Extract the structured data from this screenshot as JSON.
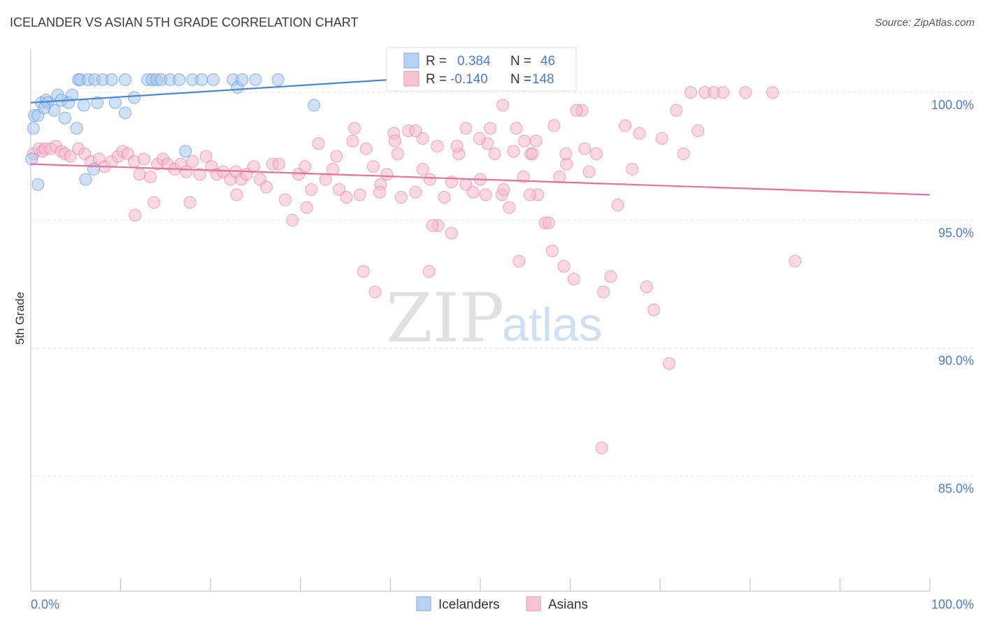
{
  "title": "ICELANDER VS ASIAN 5TH GRADE CORRELATION CHART",
  "source": "Source: ZipAtlas.com",
  "watermark": {
    "zip": "ZIP",
    "atlas": "atlas"
  },
  "colors": {
    "icelanders": "#4a86d8",
    "icelanders_fill": "#a9c8f0",
    "asians": "#e8709a",
    "asians_fill": "#f5b8cc",
    "axis_label": "#4a7bd0"
  },
  "legend": {
    "items": [
      {
        "r_label": "R =",
        "r_value": "0.384",
        "n_label": "N =",
        "n_value": "46"
      },
      {
        "r_label": "R =",
        "r_value": "-0.140",
        "n_label": "N =",
        "n_value": "148"
      }
    ]
  },
  "chart_data": {
    "type": "scatter",
    "title": "ICELANDER VS ASIAN 5TH GRADE CORRELATION CHART",
    "xlabel": "",
    "ylabel": "5th Grade",
    "xlim": [
      0,
      100
    ],
    "ylim": [
      80.5,
      101.7
    ],
    "x_tick_labels": [
      "0.0%",
      "100.0%"
    ],
    "y_ticks": [
      {
        "value": 100,
        "label": "100.0%"
      },
      {
        "value": 95,
        "label": "95.0%"
      },
      {
        "value": 90,
        "label": "90.0%"
      },
      {
        "value": 85,
        "label": "85.0%"
      }
    ],
    "grid": true,
    "series": [
      {
        "name": "Icelanders",
        "trend": {
          "x": [
            0,
            40
          ],
          "y": [
            99.6,
            100.5
          ]
        },
        "points": [
          [
            0.1,
            97.4
          ],
          [
            0.4,
            99.1
          ],
          [
            0.8,
            99.1
          ],
          [
            1.2,
            99.6
          ],
          [
            1.7,
            99.7
          ],
          [
            1.9,
            99.6
          ],
          [
            2.6,
            99.3
          ],
          [
            3.0,
            99.9
          ],
          [
            3.4,
            99.7
          ],
          [
            3.8,
            99.0
          ],
          [
            4.2,
            99.6
          ],
          [
            4.6,
            99.9
          ],
          [
            5.1,
            98.6
          ],
          [
            5.3,
            100.5
          ],
          [
            5.5,
            100.5
          ],
          [
            5.9,
            99.5
          ],
          [
            6.4,
            100.5
          ],
          [
            7.1,
            100.5
          ],
          [
            7.0,
            97.0
          ],
          [
            7.4,
            99.6
          ],
          [
            8.0,
            100.5
          ],
          [
            9.0,
            100.5
          ],
          [
            9.4,
            99.6
          ],
          [
            10.5,
            99.2
          ],
          [
            10.5,
            100.5
          ],
          [
            11.5,
            99.8
          ],
          [
            13.0,
            100.5
          ],
          [
            13.5,
            100.5
          ],
          [
            14.0,
            100.5
          ],
          [
            14.5,
            100.5
          ],
          [
            15.5,
            100.5
          ],
          [
            16.5,
            100.5
          ],
          [
            17.2,
            97.7
          ],
          [
            18.0,
            100.5
          ],
          [
            19.0,
            100.5
          ],
          [
            20.3,
            100.5
          ],
          [
            22.5,
            100.5
          ],
          [
            23.0,
            100.2
          ],
          [
            23.5,
            100.5
          ],
          [
            25.0,
            100.5
          ],
          [
            27.5,
            100.5
          ],
          [
            31.5,
            99.5
          ],
          [
            6.1,
            96.6
          ],
          [
            0.8,
            96.4
          ],
          [
            0.3,
            98.6
          ],
          [
            1.5,
            99.4
          ]
        ]
      },
      {
        "name": "Asians",
        "trend": {
          "x": [
            0,
            100
          ],
          "y": [
            97.2,
            96.0
          ]
        },
        "points": [
          [
            0.3,
            97.6
          ],
          [
            0.9,
            97.8
          ],
          [
            1.3,
            97.7
          ],
          [
            1.6,
            97.8
          ],
          [
            2.2,
            97.8
          ],
          [
            2.8,
            97.9
          ],
          [
            3.4,
            97.7
          ],
          [
            3.8,
            97.6
          ],
          [
            4.4,
            97.5
          ],
          [
            5.3,
            97.8
          ],
          [
            6.0,
            97.6
          ],
          [
            6.7,
            97.3
          ],
          [
            7.6,
            97.4
          ],
          [
            8.2,
            97.1
          ],
          [
            9.0,
            97.3
          ],
          [
            9.7,
            97.5
          ],
          [
            10.2,
            97.7
          ],
          [
            10.8,
            97.6
          ],
          [
            11.5,
            97.3
          ],
          [
            12.1,
            96.8
          ],
          [
            12.6,
            97.4
          ],
          [
            13.3,
            96.7
          ],
          [
            14.1,
            97.2
          ],
          [
            14.7,
            97.4
          ],
          [
            15.2,
            97.2
          ],
          [
            16.0,
            97.0
          ],
          [
            16.7,
            97.2
          ],
          [
            17.3,
            96.9
          ],
          [
            18.0,
            97.3
          ],
          [
            18.8,
            96.8
          ],
          [
            19.5,
            97.5
          ],
          [
            20.1,
            97.1
          ],
          [
            20.7,
            96.8
          ],
          [
            21.4,
            96.9
          ],
          [
            22.2,
            96.6
          ],
          [
            22.8,
            96.9
          ],
          [
            23.4,
            96.6
          ],
          [
            24.0,
            96.8
          ],
          [
            24.8,
            97.1
          ],
          [
            25.5,
            96.6
          ],
          [
            26.2,
            96.3
          ],
          [
            26.9,
            97.2
          ],
          [
            27.6,
            97.2
          ],
          [
            28.3,
            95.8
          ],
          [
            29.1,
            95.0
          ],
          [
            29.8,
            96.8
          ],
          [
            30.5,
            97.1
          ],
          [
            31.2,
            96.2
          ],
          [
            32.0,
            98.0
          ],
          [
            32.8,
            96.6
          ],
          [
            33.6,
            97.0
          ],
          [
            34.3,
            96.2
          ],
          [
            35.1,
            95.9
          ],
          [
            35.8,
            98.1
          ],
          [
            36.6,
            96.0
          ],
          [
            37.3,
            97.8
          ],
          [
            38.1,
            97.1
          ],
          [
            38.9,
            96.4
          ],
          [
            39.6,
            96.8
          ],
          [
            40.4,
            98.4
          ],
          [
            41.2,
            95.9
          ],
          [
            42.0,
            98.5
          ],
          [
            42.8,
            96.1
          ],
          [
            43.6,
            98.2
          ],
          [
            44.4,
            96.6
          ],
          [
            45.2,
            97.9
          ],
          [
            46.0,
            95.9
          ],
          [
            46.8,
            96.5
          ],
          [
            47.6,
            97.6
          ],
          [
            48.4,
            96.4
          ],
          [
            49.2,
            96.1
          ],
          [
            50.0,
            96.6
          ],
          [
            50.8,
            98.0
          ],
          [
            51.6,
            97.6
          ],
          [
            52.4,
            96.0
          ],
          [
            53.2,
            95.5
          ],
          [
            54.0,
            98.6
          ],
          [
            54.8,
            96.7
          ],
          [
            55.6,
            97.6
          ],
          [
            56.4,
            96.0
          ],
          [
            57.2,
            94.9
          ],
          [
            58.0,
            93.8
          ],
          [
            58.8,
            96.7
          ],
          [
            59.6,
            97.2
          ],
          [
            60.4,
            92.7
          ],
          [
            61.3,
            99.3
          ],
          [
            62.1,
            96.9
          ],
          [
            62.9,
            97.6
          ],
          [
            63.7,
            92.2
          ],
          [
            64.5,
            92.8
          ],
          [
            65.3,
            95.6
          ],
          [
            66.1,
            98.7
          ],
          [
            66.9,
            97.0
          ],
          [
            67.7,
            98.4
          ],
          [
            68.5,
            92.4
          ],
          [
            69.3,
            91.5
          ],
          [
            70.2,
            98.2
          ],
          [
            71.0,
            89.4
          ],
          [
            71.8,
            99.3
          ],
          [
            72.6,
            97.6
          ],
          [
            73.4,
            100.0
          ],
          [
            74.2,
            98.5
          ],
          [
            75.0,
            100.0
          ],
          [
            76.0,
            100.0
          ],
          [
            77.0,
            100.0
          ],
          [
            79.5,
            100.0
          ],
          [
            82.5,
            100.0
          ],
          [
            85.0,
            93.4
          ],
          [
            63.5,
            86.1
          ],
          [
            37.0,
            93.0
          ],
          [
            38.3,
            92.2
          ],
          [
            44.3,
            93.0
          ],
          [
            45.3,
            94.8
          ],
          [
            46.8,
            94.5
          ],
          [
            51.1,
            98.6
          ],
          [
            52.5,
            99.5
          ],
          [
            54.3,
            93.4
          ],
          [
            57.6,
            94.9
          ],
          [
            59.3,
            93.2
          ],
          [
            60.7,
            99.3
          ],
          [
            56.2,
            98.1
          ],
          [
            58.2,
            98.7
          ],
          [
            48.4,
            98.6
          ],
          [
            40.5,
            98.1
          ],
          [
            49.9,
            98.2
          ],
          [
            40.8,
            97.6
          ],
          [
            36.0,
            98.6
          ],
          [
            34.0,
            97.5
          ],
          [
            43.6,
            97.0
          ],
          [
            52.6,
            96.2
          ],
          [
            55.8,
            97.6
          ],
          [
            47.4,
            97.9
          ],
          [
            42.8,
            98.5
          ],
          [
            54.9,
            98.1
          ],
          [
            59.5,
            97.6
          ],
          [
            61.6,
            97.8
          ],
          [
            13.7,
            95.7
          ],
          [
            11.6,
            95.2
          ],
          [
            17.7,
            95.7
          ],
          [
            22.9,
            96.0
          ],
          [
            30.7,
            95.5
          ],
          [
            38.8,
            96.1
          ],
          [
            44.7,
            94.8
          ],
          [
            50.6,
            96.0
          ],
          [
            53.7,
            97.7
          ],
          [
            55.5,
            96.0
          ]
        ]
      }
    ]
  },
  "bottom_legend": [
    {
      "label": "Icelanders"
    },
    {
      "label": "Asians"
    }
  ]
}
